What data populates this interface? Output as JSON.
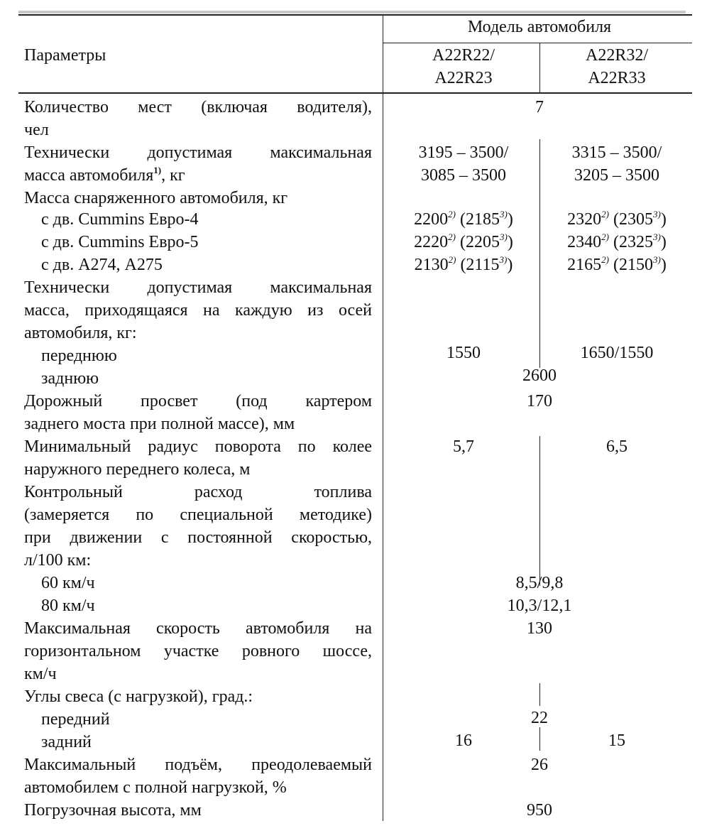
{
  "header": {
    "parameters_label": "Параметры",
    "model_label": "Модель автомобиля",
    "col1_line1": "A22R22/",
    "col1_line2": "A22R23",
    "col2_line1": "A22R32/",
    "col2_line2": "A22R33"
  },
  "rows": {
    "seats": {
      "label_line1": "Количество мест (включая водителя),",
      "label_line2": "чел",
      "value": "7"
    },
    "max_mass": {
      "label_line1": "Технически допустимая максимальная",
      "label_line2a": "масса автомобиля",
      "label_line2_note": "1)",
      "label_line2b": ", кг",
      "col1_line1": "3195 – 3500/",
      "col1_line2": "3085 – 3500",
      "col2_line1": "3315 – 3500/",
      "col2_line2": "3205 – 3500"
    },
    "curb_mass": {
      "label": "Масса снаряженного автомобиля, кг",
      "note_a": "2)",
      "note_b": "3)",
      "items": [
        {
          "label": "с дв. Cummins Евро-4",
          "c1a": "2200",
          "c1b": " (2185",
          "c2a": "2320",
          "c2b": " (2305",
          "close": ")"
        },
        {
          "label": "с дв. Cummins Евро-5",
          "c1a": "2220",
          "c1b": " (2205",
          "c2a": "2340",
          "c2b": " (2325",
          "close": ")"
        },
        {
          "label": "с дв. А274, А275",
          "c1a": "2130",
          "c1b": " (2115",
          "c2a": "2165",
          "c2b": " (2150",
          "close": ")"
        }
      ]
    },
    "axle_mass": {
      "label_line1": "Технически допустимая максимальная",
      "label_line2": "масса, приходящаяся на каждую из осей",
      "label_line3": "автомобиля, кг:",
      "front_label": "переднюю",
      "front_col1": "1550",
      "front_col2": "1650/1550",
      "rear_label": "заднюю",
      "rear_value": "2600"
    },
    "clearance": {
      "label_line1": "Дорожный просвет (под картером",
      "label_line2": "заднего моста при полной массе), мм",
      "value": "170"
    },
    "turn_radius": {
      "label_line1": "Минимальный радиус поворота по колее",
      "label_line2": "наружного переднего колеса, м",
      "col1": "5,7",
      "col2": "6,5"
    },
    "fuel": {
      "label_line1": "Контрольный расход топлива",
      "label_line2": "(замеряется по специальной методике)",
      "label_line3": "при движении с постоянной скоростью,",
      "label_line4": "л/100 км:",
      "s60_label": "60 км/ч",
      "s60_value": "8,5/9,8",
      "s80_label": "80 км/ч",
      "s80_value": "10,3/12,1"
    },
    "max_speed": {
      "label_line1": "Максимальная скорость автомобиля на",
      "label_line2": "горизонтальном участке ровного шоссе,",
      "label_line3": "км/ч",
      "value": "130"
    },
    "overhang": {
      "label": "Углы свеса (с нагрузкой), град.:",
      "front_label": "передний",
      "front_value": "22",
      "rear_label": "задний",
      "rear_col1": "16",
      "rear_col2": "15"
    },
    "climb": {
      "label_line1": "Максимальный подъём, преодолеваемый",
      "label_line2": "автомобилем с полной нагрузкой, %",
      "value": "26"
    },
    "loading_height": {
      "label": "Погрузочная высота, мм",
      "value": "950"
    }
  }
}
